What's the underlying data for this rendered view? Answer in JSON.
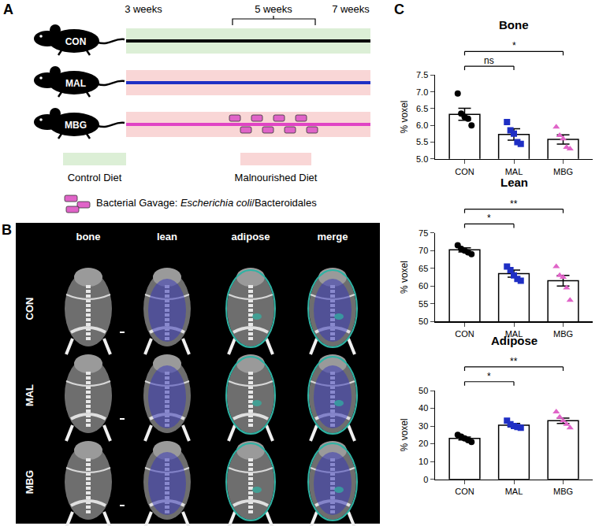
{
  "panel_a": {
    "label": "A",
    "timeline": [
      "3 weeks",
      "5 weeks",
      "7 weeks"
    ],
    "groups": [
      {
        "name": "CON",
        "line_color": "#000000",
        "background": "#dcefd6",
        "gavage": false
      },
      {
        "name": "MAL",
        "line_color": "#1f2fc4",
        "background": "#f9d6d6",
        "gavage": false
      },
      {
        "name": "MBG",
        "line_color": "#e044c4",
        "background": "#f9d6d6",
        "gavage": true
      }
    ],
    "legend": {
      "control": {
        "text": "Control Diet",
        "color": "#dcefd6"
      },
      "malnourished": {
        "text": "Malnourished Diet",
        "color": "#f9d6d6"
      },
      "gavage": {
        "prefix": "Bacterial Gavage: ",
        "italic": "Escherichia coli",
        "suffix": "/Bacteroidales",
        "color": "#e064c8"
      }
    }
  },
  "panel_b": {
    "label": "B",
    "columns": [
      "bone",
      "lean",
      "adipose",
      "merge"
    ],
    "rows": [
      "CON",
      "MAL",
      "MBG"
    ]
  },
  "panel_c": {
    "label": "C"
  },
  "chart_data": [
    {
      "type": "bar",
      "title": "Bone",
      "ylabel": "% voxel",
      "categories": [
        "CON",
        "MAL",
        "MBG"
      ],
      "values": [
        6.33,
        5.73,
        5.58
      ],
      "errors": [
        0.18,
        0.17,
        0.14
      ],
      "points": [
        [
          6.95,
          6.35,
          6.25,
          6.2,
          6.0
        ],
        [
          6.1,
          5.85,
          5.75,
          5.5,
          5.45
        ],
        [
          5.95,
          5.7,
          5.6,
          5.35,
          5.3
        ]
      ],
      "colors": [
        "#000000",
        "#1f2fc4",
        "#e064c8"
      ],
      "markers": [
        "circle",
        "square",
        "triangle-up"
      ],
      "ylim": [
        5,
        7.5
      ],
      "yticks": [
        {
          "value": 5,
          "label": "5.0"
        },
        5.5,
        {
          "value": 6,
          "label": "6.0"
        },
        6.5,
        {
          "value": 7,
          "label": "7.0"
        },
        7.5
      ],
      "comparisons": [
        {
          "from": "CON",
          "to": "MAL",
          "label": "ns"
        },
        {
          "from": "CON",
          "to": "MBG",
          "label": "*"
        }
      ],
      "grid": false
    },
    {
      "type": "bar",
      "title": "Lean",
      "ylabel": "% voxel",
      "categories": [
        "CON",
        "MAL",
        "MBG"
      ],
      "values": [
        70.2,
        63.5,
        61.5
      ],
      "errors": [
        0.6,
        1.0,
        1.5
      ],
      "points": [
        [
          71.5,
          70.5,
          70.0,
          69.5,
          69.0
        ],
        [
          65.5,
          64.5,
          63.0,
          62.0,
          61.5
        ],
        [
          65.5,
          63.0,
          62.5,
          59.5,
          56.0
        ]
      ],
      "colors": [
        "#000000",
        "#1f2fc4",
        "#e064c8"
      ],
      "markers": [
        "circle",
        "square",
        "triangle-up"
      ],
      "ylim": [
        50,
        75
      ],
      "yticks": [
        50,
        55,
        60,
        65,
        70,
        75
      ],
      "comparisons": [
        {
          "from": "CON",
          "to": "MAL",
          "label": "*"
        },
        {
          "from": "CON",
          "to": "MBG",
          "label": "**"
        }
      ],
      "grid": false
    },
    {
      "type": "bar",
      "title": "Adipose",
      "ylabel": "% voxel",
      "categories": [
        "CON",
        "MAL",
        "MBG"
      ],
      "values": [
        23.0,
        30.5,
        33.0
      ],
      "errors": [
        0.8,
        1.0,
        1.5
      ],
      "points": [
        [
          25,
          24,
          23,
          22,
          21
        ],
        [
          33,
          31,
          30,
          29.5,
          29
        ],
        [
          38,
          35,
          33,
          31,
          29
        ]
      ],
      "colors": [
        "#000000",
        "#1f2fc4",
        "#e064c8"
      ],
      "markers": [
        "circle",
        "square",
        "triangle-up"
      ],
      "ylim": [
        0,
        50
      ],
      "yticks": [
        0,
        10,
        20,
        30,
        40,
        50
      ],
      "comparisons": [
        {
          "from": "CON",
          "to": "MAL",
          "label": "*"
        },
        {
          "from": "CON",
          "to": "MBG",
          "label": "**"
        }
      ],
      "grid": false
    }
  ]
}
